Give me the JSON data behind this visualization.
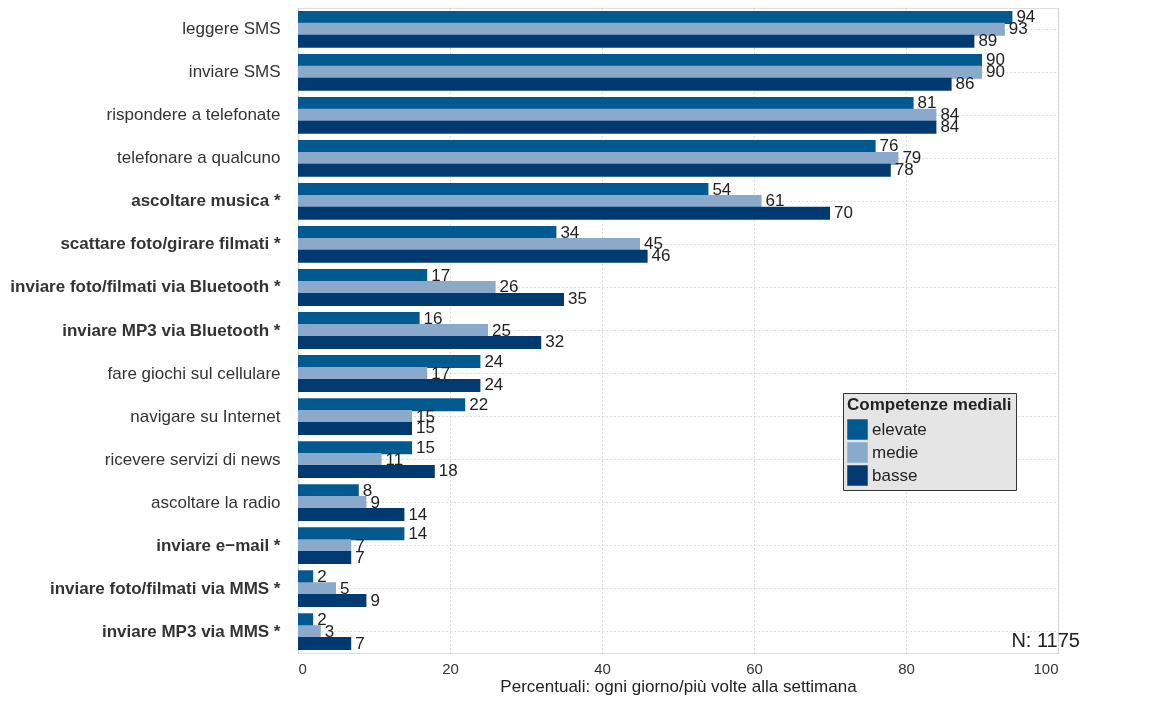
{
  "chart_data": {
    "type": "bar",
    "orientation": "horizontal",
    "categories": [
      "leggere SMS",
      "inviare SMS",
      "rispondere a telefonate",
      "telefonare a qualcuno",
      "ascoltare musica  *",
      "scattare foto/girare filmati  *",
      "inviare foto/filmati via Bluetooth  *",
      "inviare MP3 via Bluetooth  *",
      "fare giochi sul cellulare",
      "navigare su Internet",
      "ricevere servizi di news",
      "ascoltare la radio",
      "inviare e−mail  *",
      "inviare foto/filmati via MMS  *",
      "inviare MP3 via MMS  *"
    ],
    "series": [
      {
        "name": "elevate",
        "color": "#005a8f",
        "values": [
          94,
          90,
          81,
          76,
          54,
          34,
          17,
          16,
          24,
          22,
          15,
          8,
          14,
          2,
          2
        ]
      },
      {
        "name": "medie",
        "color": "#8aa9cb",
        "values": [
          93,
          90,
          84,
          79,
          61,
          45,
          26,
          25,
          17,
          15,
          11,
          9,
          7,
          5,
          3
        ]
      },
      {
        "name": "basse",
        "color": "#003a70",
        "values": [
          89,
          86,
          84,
          78,
          70,
          46,
          35,
          32,
          24,
          15,
          18,
          14,
          7,
          9,
          7
        ]
      }
    ],
    "xlim": [
      0,
      100
    ],
    "xticks": [
      0,
      20,
      40,
      60,
      80,
      100
    ],
    "xlabel": "Percentuali: ogni giorno/più volte alla settimana",
    "legend_title": "Competenze mediali",
    "legend": "right",
    "data_labels": true,
    "grid": true,
    "annotations": [
      "N: 1175"
    ]
  }
}
